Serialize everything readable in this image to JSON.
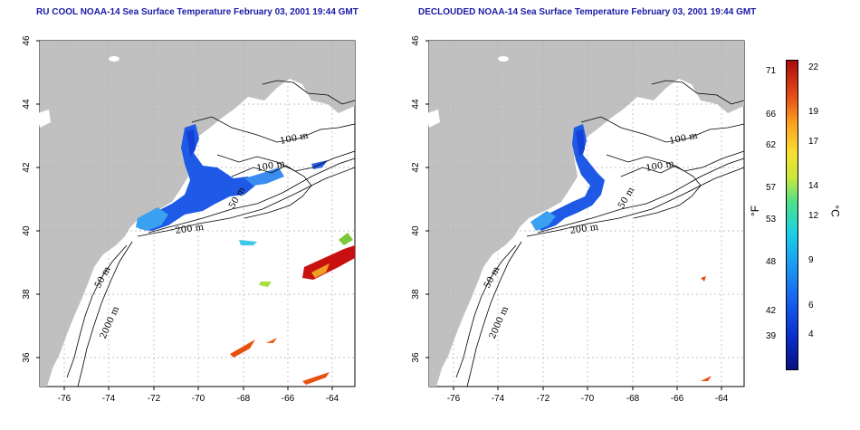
{
  "titles": {
    "left": "RU COOL NOAA-14 Sea Surface Temperature February 03, 2001 19:44 GMT",
    "right": "DECLOUDED NOAA-14 Sea Surface Temperature February 03, 2001 19:44 GMT"
  },
  "map": {
    "lon_range": [
      -77,
      -63
    ],
    "lat_range": [
      35,
      46
    ],
    "x_ticks": [
      "-76",
      "-74",
      "-72",
      "-70",
      "-68",
      "-66",
      "-64"
    ],
    "y_ticks": [
      "46",
      "44",
      "42",
      "40",
      "38",
      "36"
    ],
    "contour_labels": {
      "left": [
        "100 m",
        "100 m",
        "50 m",
        "200 m",
        "50 m",
        "2000 m"
      ],
      "right": [
        "100 m",
        "100 m",
        "50 m",
        "200 m",
        "50 m",
        "2000 m"
      ]
    },
    "colors": {
      "land": "#c0c0c0",
      "ocean": "#ffffff",
      "grid": "#b0b0b0",
      "contour": "#000000"
    }
  },
  "colorbar": {
    "fahrenheit_ticks": [
      "71",
      "66",
      "62",
      "57",
      "53",
      "48",
      "42",
      "39"
    ],
    "celsius_ticks": [
      "22",
      "19",
      "17",
      "14",
      "12",
      "9",
      "6",
      "4"
    ],
    "fahrenheit_unit": "°F",
    "celsius_unit": "°C"
  }
}
